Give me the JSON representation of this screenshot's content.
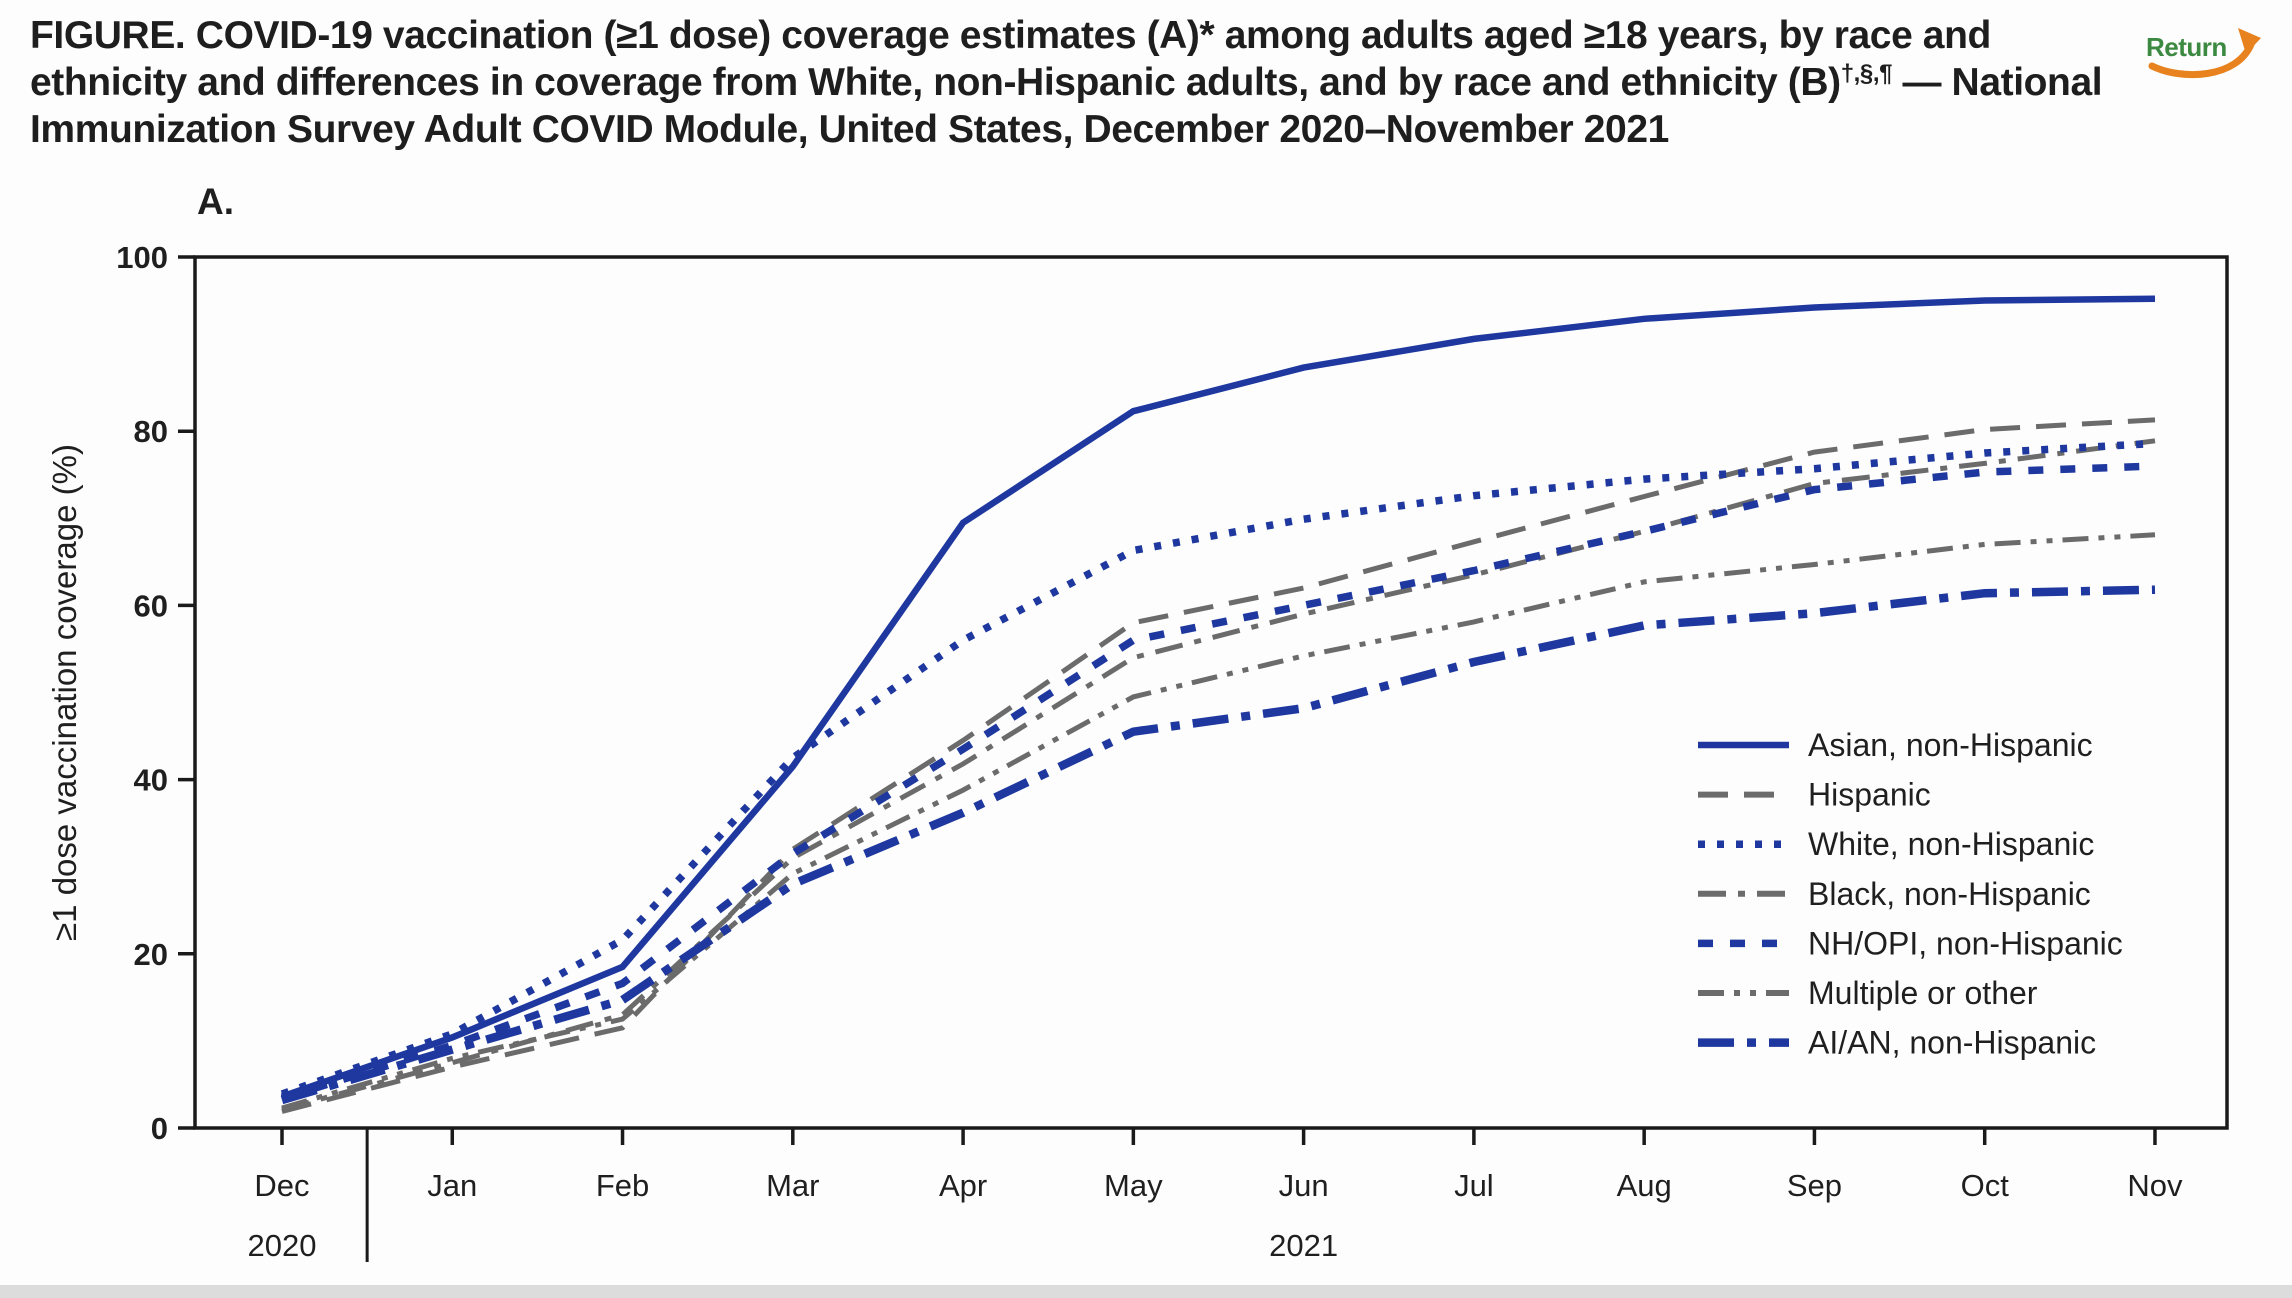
{
  "page": {
    "background": "#fdfdfd",
    "bottom_strip_color": "#dcdcdc"
  },
  "header": {
    "title_main": "FIGURE. COVID-19 vaccination (≥1 dose) coverage estimates (A)* among adults aged ≥18 years, by race and ethnicity and differences in coverage from White, non-Hispanic adults, and by race and ethnicity (B)",
    "title_superscript": "†,§,¶",
    "title_tail": " — National Immunization Survey Adult COVID Module, United States, December 2020–November 2021",
    "return_label": "Return",
    "return_text_color": "#3c8a41",
    "return_arrow_color": "#e8821e"
  },
  "chart_data": {
    "type": "line",
    "panel_label": "A.",
    "ylabel": "≥1 dose vaccination coverage (%)",
    "ylim": [
      0,
      100
    ],
    "yticks": [
      0,
      20,
      40,
      60,
      80,
      100
    ],
    "x_categories": [
      "Dec",
      "Jan",
      "Feb",
      "Mar",
      "Apr",
      "May",
      "Jun",
      "Jul",
      "Aug",
      "Sep",
      "Oct",
      "Nov"
    ],
    "year_labels": [
      {
        "text": "2020",
        "month_index": 0
      },
      {
        "text": "2021",
        "month_index": 6
      }
    ],
    "grid": false,
    "legend_position": "inside-right",
    "colors": {
      "blue": "#1e389f",
      "gray": "#6b6b6b",
      "axis": "#1a1a1a"
    },
    "series": [
      {
        "name": "Asian, non-Hispanic",
        "color": "blue",
        "dash": "",
        "width": 6.5,
        "values": [
          3.6,
          10.4,
          18.5,
          41.5,
          69.5,
          82.3,
          87.3,
          90.6,
          92.9,
          94.2,
          95.0,
          95.2
        ]
      },
      {
        "name": "Hispanic",
        "color": "gray",
        "dash": "30 16",
        "width": 5,
        "values": [
          1.9,
          7.0,
          11.5,
          32.0,
          44.5,
          58.0,
          62.0,
          67.3,
          72.5,
          77.6,
          80.2,
          81.3
        ]
      },
      {
        "name": "White, non-Hispanic",
        "color": "blue",
        "dash": "7 12",
        "width": 7.5,
        "values": [
          3.9,
          10.8,
          21.6,
          42.5,
          56.0,
          66.3,
          69.9,
          72.6,
          74.5,
          75.7,
          77.5,
          78.6
        ]
      },
      {
        "name": "Black, non-Hispanic",
        "color": "gray",
        "dash": "28 12 7 12",
        "width": 5,
        "values": [
          2.1,
          7.5,
          13.0,
          31.0,
          41.8,
          54.0,
          59.0,
          63.5,
          68.5,
          74.0,
          76.3,
          78.9
        ]
      },
      {
        "name": "NH/OPI, non-Hispanic",
        "color": "blue",
        "dash": "15 17",
        "width": 7.5,
        "values": [
          3.4,
          9.5,
          16.6,
          31.5,
          43.5,
          56.0,
          60.0,
          64.0,
          68.5,
          73.3,
          75.3,
          76.0
        ]
      },
      {
        "name": "Multiple or other",
        "color": "gray",
        "dash": "26 10 6 10 6 10",
        "width": 5,
        "values": [
          2.3,
          8.0,
          12.5,
          29.2,
          38.8,
          49.5,
          54.2,
          58.1,
          62.7,
          64.7,
          67.0,
          68.1
        ]
      },
      {
        "name": "AI/AN, non-Hispanic",
        "color": "blue",
        "dash": "36 13 9 13",
        "width": 8.5,
        "values": [
          3.2,
          9.0,
          14.7,
          28.0,
          36.2,
          45.5,
          48.2,
          53.5,
          57.7,
          59.1,
          61.4,
          61.8
        ]
      }
    ]
  }
}
